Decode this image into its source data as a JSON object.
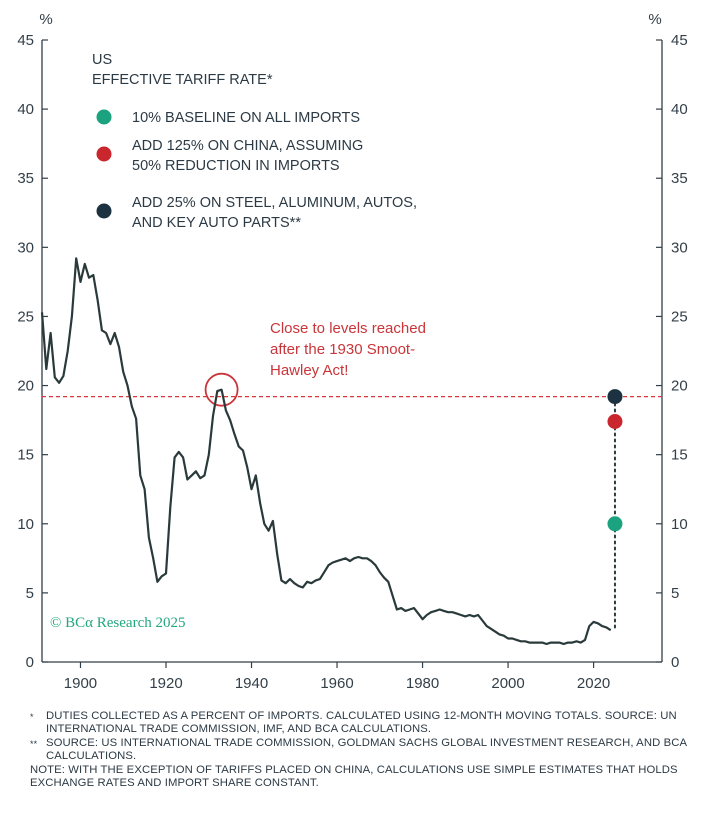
{
  "chart_data": {
    "type": "line",
    "unit_left": "%",
    "unit_right": "%",
    "xlim": [
      1891,
      2036
    ],
    "ylim": [
      0,
      45
    ],
    "x_ticks": [
      1900,
      1920,
      1940,
      1960,
      1980,
      2000,
      2020
    ],
    "y_ticks": [
      0,
      5,
      10,
      15,
      20,
      25,
      30,
      35,
      40,
      45
    ],
    "legend_title": [
      "US",
      "EFFECTIVE TARIFF RATE*"
    ],
    "legend": [
      {
        "lines": [
          "10% BASELINE ON ALL IMPORTS"
        ],
        "color": "#1aa37e"
      },
      {
        "lines": [
          "ADD 125% ON CHINA, ASSUMING",
          "50% REDUCTION IN IMPORTS"
        ],
        "color": "#c9272d"
      },
      {
        "lines": [
          "ADD 25% ON STEEL, ALUMINUM, AUTOS,",
          "AND KEY AUTO PARTS**"
        ],
        "color": "#1d3240"
      }
    ],
    "annotation": [
      "Close to levels reached",
      "after the 1930 Smoot-",
      "Hawley Act!"
    ],
    "reference_line": 19.2,
    "highlight_point": {
      "x": 1933,
      "y": 19.7
    },
    "series_color": "#2a3a3a",
    "series": [
      {
        "name": "US effective tariff rate",
        "points": [
          [
            1891,
            25.3
          ],
          [
            1892,
            21.2
          ],
          [
            1893,
            23.8
          ],
          [
            1894,
            20.6
          ],
          [
            1895,
            20.2
          ],
          [
            1896,
            20.7
          ],
          [
            1897,
            22.5
          ],
          [
            1898,
            25
          ],
          [
            1899,
            29.2
          ],
          [
            1900,
            27.5
          ],
          [
            1901,
            28.8
          ],
          [
            1902,
            27.8
          ],
          [
            1903,
            28
          ],
          [
            1904,
            26.2
          ],
          [
            1905,
            24
          ],
          [
            1906,
            23.8
          ],
          [
            1907,
            23
          ],
          [
            1908,
            23.8
          ],
          [
            1909,
            22.8
          ],
          [
            1910,
            21
          ],
          [
            1911,
            20
          ],
          [
            1912,
            18.5
          ],
          [
            1913,
            17.6
          ],
          [
            1914,
            13.5
          ],
          [
            1915,
            12.5
          ],
          [
            1916,
            9
          ],
          [
            1917,
            7.5
          ],
          [
            1918,
            5.8
          ],
          [
            1919,
            6.2
          ],
          [
            1920,
            6.4
          ],
          [
            1921,
            11.2
          ],
          [
            1922,
            14.8
          ],
          [
            1923,
            15.2
          ],
          [
            1924,
            14.8
          ],
          [
            1925,
            13.2
          ],
          [
            1926,
            13.5
          ],
          [
            1927,
            13.8
          ],
          [
            1928,
            13.3
          ],
          [
            1929,
            13.5
          ],
          [
            1930,
            15
          ],
          [
            1931,
            17.8
          ],
          [
            1932,
            19.6
          ],
          [
            1933,
            19.7
          ],
          [
            1934,
            18.2
          ],
          [
            1935,
            17.5
          ],
          [
            1936,
            16.5
          ],
          [
            1937,
            15.6
          ],
          [
            1938,
            15.3
          ],
          [
            1939,
            14.1
          ],
          [
            1940,
            12.5
          ],
          [
            1941,
            13.5
          ],
          [
            1942,
            11.5
          ],
          [
            1943,
            10
          ],
          [
            1944,
            9.5
          ],
          [
            1945,
            10.2
          ],
          [
            1946,
            7.8
          ],
          [
            1947,
            5.9
          ],
          [
            1948,
            5.7
          ],
          [
            1949,
            6
          ],
          [
            1950,
            5.7
          ],
          [
            1951,
            5.5
          ],
          [
            1952,
            5.4
          ],
          [
            1953,
            5.8
          ],
          [
            1954,
            5.7
          ],
          [
            1955,
            5.9
          ],
          [
            1956,
            6
          ],
          [
            1957,
            6.5
          ],
          [
            1958,
            7
          ],
          [
            1959,
            7.2
          ],
          [
            1960,
            7.3
          ],
          [
            1961,
            7.4
          ],
          [
            1962,
            7.5
          ],
          [
            1963,
            7.3
          ],
          [
            1964,
            7.5
          ],
          [
            1965,
            7.6
          ],
          [
            1966,
            7.5
          ],
          [
            1967,
            7.5
          ],
          [
            1968,
            7.3
          ],
          [
            1969,
            7
          ],
          [
            1970,
            6.5
          ],
          [
            1971,
            6.1
          ],
          [
            1972,
            5.8
          ],
          [
            1973,
            4.8
          ],
          [
            1974,
            3.8
          ],
          [
            1975,
            3.9
          ],
          [
            1976,
            3.7
          ],
          [
            1977,
            3.8
          ],
          [
            1978,
            3.9
          ],
          [
            1979,
            3.5
          ],
          [
            1980,
            3.1
          ],
          [
            1981,
            3.4
          ],
          [
            1982,
            3.6
          ],
          [
            1983,
            3.7
          ],
          [
            1984,
            3.8
          ],
          [
            1985,
            3.7
          ],
          [
            1986,
            3.6
          ],
          [
            1987,
            3.6
          ],
          [
            1988,
            3.5
          ],
          [
            1989,
            3.4
          ],
          [
            1990,
            3.3
          ],
          [
            1991,
            3.4
          ],
          [
            1992,
            3.3
          ],
          [
            1993,
            3.4
          ],
          [
            1994,
            3
          ],
          [
            1995,
            2.6
          ],
          [
            1996,
            2.4
          ],
          [
            1997,
            2.2
          ],
          [
            1998,
            2
          ],
          [
            1999,
            1.9
          ],
          [
            2000,
            1.7
          ],
          [
            2001,
            1.7
          ],
          [
            2002,
            1.6
          ],
          [
            2003,
            1.5
          ],
          [
            2004,
            1.5
          ],
          [
            2005,
            1.4
          ],
          [
            2006,
            1.4
          ],
          [
            2007,
            1.4
          ],
          [
            2008,
            1.4
          ],
          [
            2009,
            1.3
          ],
          [
            2010,
            1.4
          ],
          [
            2011,
            1.4
          ],
          [
            2012,
            1.4
          ],
          [
            2013,
            1.3
          ],
          [
            2014,
            1.4
          ],
          [
            2015,
            1.4
          ],
          [
            2016,
            1.5
          ],
          [
            2017,
            1.4
          ],
          [
            2018,
            1.6
          ],
          [
            2019,
            2.6
          ],
          [
            2020,
            2.9
          ],
          [
            2021,
            2.8
          ],
          [
            2022,
            2.6
          ],
          [
            2023,
            2.5
          ],
          [
            2024,
            2.3
          ]
        ]
      }
    ],
    "scenario_points": [
      {
        "x": 2025,
        "y": 10,
        "color": "#1aa37e"
      },
      {
        "x": 2025,
        "y": 17.4,
        "color": "#c9272d"
      },
      {
        "x": 2025,
        "y": 19.2,
        "color": "#1d3240"
      }
    ],
    "scenario_base": {
      "x": 2025,
      "y": 2.5
    },
    "watermark": "© BCα Research 2025"
  },
  "footnotes": [
    {
      "mark": "*",
      "text": "DUTIES COLLECTED AS A PERCENT OF IMPORTS. CALCULATED USING 12-MONTH MOVING TOTALS. SOURCE: UN INTERNATIONAL TRADE COMMISSION, IMF, AND BCA CALCULATIONS."
    },
    {
      "mark": "**",
      "text": "SOURCE: US INTERNATIONAL TRADE COMMISSION, GOLDMAN SACHS GLOBAL INVESTMENT RESEARCH, AND BCA CALCULATIONS."
    }
  ],
  "note": "NOTE: WITH THE EXCEPTION OF TARIFFS PLACED ON CHINA, CALCULATIONS USE SIMPLE ESTIMATES THAT HOLDS EXCHANGE RATES AND IMPORT SHARE CONSTANT."
}
